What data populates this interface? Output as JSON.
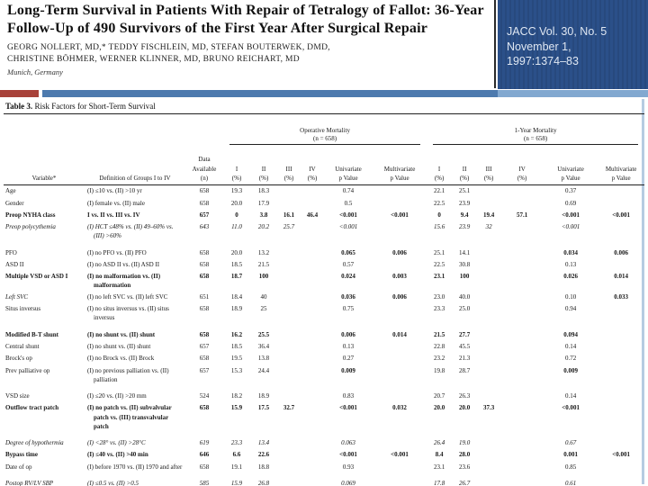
{
  "header": {
    "title": "Long-Term Survival in Patients With Repair of Tetralogy of Fallot: 36-Year Follow-Up of 490 Survivors of the First Year After Surgical Repair",
    "authors_line1": "GEORG NOLLERT, MD,* TEDDY FISCHLEIN, MD, STEFAN BOUTERWEK, DMD,",
    "authors_line2": "CHRISTINE BÖHMER, WERNER KLINNER, MD, BRUNO REICHART, MD",
    "affiliation": "Munich, Germany"
  },
  "citation": {
    "line1": "JACC Vol. 30, No. 5",
    "line2": "November 1,",
    "line3": "1997:1374–83"
  },
  "colors": {
    "citation_box": "#2b5089",
    "accent_red": "#a8423a",
    "accent_blue": "#4d7aae",
    "accent_blue_light": "#82a8d0"
  },
  "table": {
    "caption_label": "Table 3.",
    "caption_text": " Risk Factors for Short-Term Survival",
    "group_headers": [
      {
        "label": "Operative Mortality",
        "sub": "(n = 658)"
      },
      {
        "label": "1-Year Mortality",
        "sub": "(n = 658)"
      }
    ],
    "columns": [
      "Variable*",
      "Definition of Groups I to IV",
      "Data\nAvailable\n(n)",
      "I\n(%)",
      "II\n(%)",
      "III\n(%)",
      "IV\n(%)",
      "Univariate\np Value",
      "Multivariate\np Value",
      "I\n(%)",
      "II\n(%)",
      "III\n(%)",
      "IV\n(%)",
      "Univariate\np Value",
      "Multivariate\np Value"
    ],
    "rows": [
      {
        "variable": "Age",
        "definition": "(I) ≤10 vs. (II) >10 yr",
        "style": "normal",
        "cells": [
          "658",
          "19.3",
          "18.3",
          "",
          "",
          "0.74",
          "",
          "22.1",
          "25.1",
          "",
          "",
          "0.37",
          ""
        ]
      },
      {
        "variable": "Gender",
        "definition": "(I) female vs. (II) male",
        "style": "normal",
        "cells": [
          "658",
          "20.0",
          "17.9",
          "",
          "",
          "0.5",
          "",
          "22.5",
          "23.9",
          "",
          "",
          "0.69",
          ""
        ]
      },
      {
        "variable": "Preop NYHA class",
        "definition": "I vs. II vs. III vs. IV",
        "style": "bold",
        "cells": [
          "657",
          "0",
          "3.8",
          "16.1",
          "46.4",
          "<0.001",
          "<0.001",
          "0",
          "9.4",
          "19.4",
          "57.1",
          "<0.001",
          "<0.001"
        ]
      },
      {
        "variable": "Preop polycythemia",
        "definition": "(I) HCT ≤48% vs. (II) 49–60% vs. (III) >60%",
        "style": "italic",
        "gap_after": true,
        "cells": [
          "643",
          "11.0",
          "20.2",
          "25.7",
          "",
          "<0.001",
          "",
          "15.6",
          "23.9",
          "32",
          "",
          "<0.001",
          ""
        ]
      },
      {
        "variable": "PFO",
        "definition": "(I) no PFO vs. (II) PFO",
        "style": "normal",
        "bold_cells": [
          5,
          6,
          11,
          12
        ],
        "cells": [
          "658",
          "20.0",
          "13.2",
          "",
          "",
          "0.065",
          "0.006",
          "25.1",
          "14.1",
          "",
          "",
          "0.034",
          "0.006"
        ]
      },
      {
        "variable": "ASD II",
        "definition": "(I) no ASD II vs. (II) ASD II",
        "style": "normal",
        "cells": [
          "658",
          "18.5",
          "21.5",
          "",
          "",
          "0.57",
          "",
          "22.5",
          "30.8",
          "",
          "",
          "0.13",
          ""
        ]
      },
      {
        "variable": "Multiple VSD or ASD I",
        "definition": "(I) no malformation vs. (II) malformation",
        "style": "bold",
        "cells": [
          "658",
          "18.7",
          "100",
          "",
          "",
          "0.024",
          "0.003",
          "23.1",
          "100",
          "",
          "",
          "0.026",
          "0.014"
        ]
      },
      {
        "variable": "Left SVC",
        "definition": "(I) no left SVC vs. (II) left SVC",
        "style": "italic-var",
        "bold_cells": [
          5,
          6,
          12
        ],
        "cells": [
          "651",
          "18.4",
          "40",
          "",
          "",
          "0.036",
          "0.006",
          "23.0",
          "40.0",
          "",
          "",
          "0.10",
          "0.033"
        ]
      },
      {
        "variable": "Situs inversus",
        "definition": "(I) no situs inversus vs. (II) situs inversus",
        "style": "normal",
        "gap_after": true,
        "cells": [
          "658",
          "18.9",
          "25",
          "",
          "",
          "0.75",
          "",
          "23.3",
          "25.0",
          "",
          "",
          "0.94",
          ""
        ]
      },
      {
        "variable": "Modified B-T shunt",
        "definition": "(I) no shunt vs. (II) shunt",
        "style": "bold",
        "cells": [
          "658",
          "16.2",
          "25.5",
          "",
          "",
          "0.006",
          "0.014",
          "21.5",
          "27.7",
          "",
          "",
          "0.094",
          ""
        ]
      },
      {
        "variable": "Central shunt",
        "definition": "(I) no shunt vs. (II) shunt",
        "style": "normal",
        "cells": [
          "657",
          "18.5",
          "36.4",
          "",
          "",
          "0.13",
          "",
          "22.8",
          "45.5",
          "",
          "",
          "0.14",
          ""
        ]
      },
      {
        "variable": "Brock's op",
        "definition": "(I) no Brock vs. (II) Brock",
        "style": "normal",
        "cells": [
          "658",
          "19.5",
          "13.8",
          "",
          "",
          "0.27",
          "",
          "23.2",
          "21.3",
          "",
          "",
          "0.72",
          ""
        ]
      },
      {
        "variable": "Prev palliative op",
        "definition": "(I) no previous palliation vs. (II) palliation",
        "style": "normal",
        "gap_after": true,
        "bold_cells": [
          5,
          11
        ],
        "cells": [
          "657",
          "15.3",
          "24.4",
          "",
          "",
          "0.009",
          "",
          "19.8",
          "28.7",
          "",
          "",
          "0.009",
          ""
        ]
      },
      {
        "variable": "VSD size",
        "definition": "(I) ≤20 vs. (II) >20 mm",
        "style": "normal",
        "cells": [
          "524",
          "18.2",
          "18.9",
          "",
          "",
          "0.83",
          "",
          "20.7",
          "26.3",
          "",
          "",
          "0.14",
          ""
        ]
      },
      {
        "variable": "Outflow tract patch",
        "definition": "(I) no patch vs. (II) subvalvular patch vs. (III) transvalvular patch",
        "style": "bold",
        "gap_after": true,
        "cells": [
          "658",
          "15.9",
          "17.5",
          "32.7",
          "",
          "<0.001",
          "0.032",
          "20.0",
          "20.0",
          "37.3",
          "",
          "<0.001",
          ""
        ]
      },
      {
        "variable": "Degree of hypothermia",
        "definition": "(I) <28° vs. (II) >28°C",
        "style": "italic",
        "cells": [
          "619",
          "23.3",
          "13.4",
          "",
          "",
          "0.063",
          "",
          "26.4",
          "19.0",
          "",
          "",
          "0.67",
          ""
        ]
      },
      {
        "variable": "Bypass time",
        "definition": "(I) ≤40 vs. (II) >40 min",
        "style": "bold",
        "cells": [
          "646",
          "6.6",
          "22.6",
          "",
          "",
          "<0.001",
          "<0.001",
          "8.4",
          "28.0",
          "",
          "",
          "0.001",
          "<0.001"
        ]
      },
      {
        "variable": "Date of op",
        "definition": "(I) before 1970 vs. (II) 1970 and after",
        "style": "normal",
        "gap_after": true,
        "cells": [
          "658",
          "19.1",
          "18.8",
          "",
          "",
          "0.93",
          "",
          "23.1",
          "23.6",
          "",
          "",
          "0.85",
          ""
        ]
      },
      {
        "variable": "Postop RV/LV SBP",
        "definition": "(I) ≤0.5 vs. (II) >0.5",
        "style": "italic",
        "cells": [
          "585",
          "15.9",
          "26.8",
          "",
          "",
          "0.069",
          "",
          "17.8",
          "26.7",
          "",
          "",
          "0.61",
          ""
        ]
      }
    ]
  }
}
